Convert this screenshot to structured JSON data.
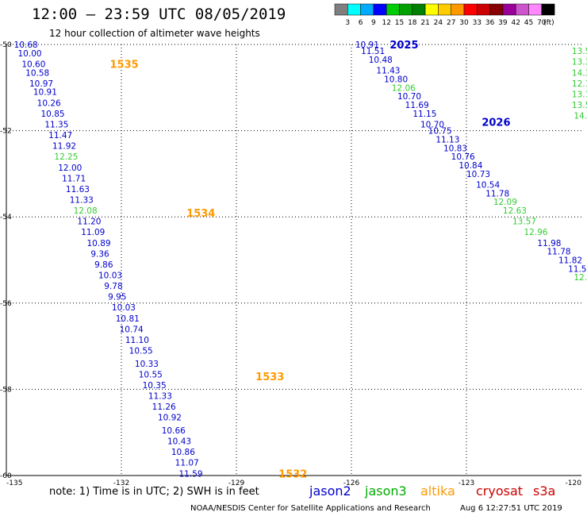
{
  "header": {
    "title": "12:00 – 23:59 UTC 08/05/2019",
    "subtitle": "12 hour collection of altimeter wave heights"
  },
  "color_scale": {
    "ticks": [
      "3",
      "6",
      "9",
      "12",
      "15",
      "18",
      "21",
      "24",
      "27",
      "30",
      "33",
      "36",
      "39",
      "42",
      "45",
      "70"
    ],
    "unit": "(ft)",
    "colors": [
      "#7f7f7f",
      "#00ffff",
      "#00aaff",
      "#0000ff",
      "#00cc00",
      "#00a000",
      "#008000",
      "#ffff00",
      "#ffcc00",
      "#ff9900",
      "#ff0000",
      "#cc0000",
      "#880000",
      "#990099",
      "#cc55cc",
      "#ff88ff",
      "#000000"
    ]
  },
  "map": {
    "lon_labels": [
      "-135",
      "-132",
      "-129",
      "-126",
      "-123",
      "-120"
    ],
    "lat_labels": [
      "-50",
      "-52",
      "-54",
      "-56",
      "-58",
      "-60"
    ]
  },
  "chart_data": {
    "type": "scatter",
    "xlim": [
      -135,
      -120
    ],
    "ylim": [
      -60,
      -50
    ],
    "x_ticks": [
      -135,
      -132,
      -129,
      -126,
      -123,
      -120
    ],
    "y_ticks": [
      -50,
      -52,
      -54,
      -56,
      -58,
      -60
    ],
    "pass_labels": [
      {
        "text": "1535",
        "lon": -132.3,
        "lat": -50.45,
        "color": "#ff9900"
      },
      {
        "text": "1534",
        "lon": -130.3,
        "lat": -53.9,
        "color": "#ff9900"
      },
      {
        "text": "1533",
        "lon": -128.5,
        "lat": -57.7,
        "color": "#ff9900"
      },
      {
        "text": "1532",
        "lon": -127.9,
        "lat": -59.95,
        "color": "#ff9900"
      },
      {
        "text": "2025",
        "lon": -125.0,
        "lat": -50.0,
        "color": "#0000cc"
      },
      {
        "text": "2026",
        "lon": -122.6,
        "lat": -51.8,
        "color": "#0000cc"
      }
    ],
    "series": [
      {
        "name": "jason2",
        "color": "#0000cc",
        "points": [
          {
            "lon": -134.8,
            "lat": -50.0,
            "label": "10.68"
          },
          {
            "lon": -134.7,
            "lat": -50.2,
            "label": "10.00"
          },
          {
            "lon": -134.6,
            "lat": -50.45,
            "label": "10.60"
          },
          {
            "lon": -134.5,
            "lat": -50.65,
            "label": "10.58"
          },
          {
            "lon": -134.4,
            "lat": -50.9,
            "label": "10.97"
          },
          {
            "lon": -134.3,
            "lat": -51.1,
            "label": "10.91"
          },
          {
            "lon": -134.2,
            "lat": -51.35,
            "label": "10.26"
          },
          {
            "lon": -134.1,
            "lat": -51.6,
            "label": "10.85"
          },
          {
            "lon": -134.0,
            "lat": -51.85,
            "label": "11.35"
          },
          {
            "lon": -133.9,
            "lat": -52.1,
            "label": "11.47"
          },
          {
            "lon": -133.8,
            "lat": -52.35,
            "label": "11.92"
          },
          {
            "lon": -133.65,
            "lat": -52.85,
            "label": "12.00"
          },
          {
            "lon": -133.55,
            "lat": -53.1,
            "label": "11.71"
          },
          {
            "lon": -133.45,
            "lat": -53.35,
            "label": "11.63"
          },
          {
            "lon": -133.35,
            "lat": -53.6,
            "label": "11.33"
          },
          {
            "lon": -133.15,
            "lat": -54.1,
            "label": "11.20"
          },
          {
            "lon": -133.05,
            "lat": -54.35,
            "label": "11.09"
          },
          {
            "lon": -132.9,
            "lat": -54.6,
            "label": "10.89"
          },
          {
            "lon": -132.8,
            "lat": -54.85,
            "label": "9.36"
          },
          {
            "lon": -132.7,
            "lat": -55.1,
            "label": "9.86"
          },
          {
            "lon": -132.6,
            "lat": -55.35,
            "label": "10.03"
          },
          {
            "lon": -132.45,
            "lat": -55.6,
            "label": "9.78"
          },
          {
            "lon": -132.35,
            "lat": -55.85,
            "label": "9.95"
          },
          {
            "lon": -132.25,
            "lat": -56.1,
            "label": "10.03"
          },
          {
            "lon": -132.15,
            "lat": -56.35,
            "label": "10.81"
          },
          {
            "lon": -132.05,
            "lat": -56.6,
            "label": "10.74"
          },
          {
            "lon": -131.9,
            "lat": -56.85,
            "label": "11.10"
          },
          {
            "lon": -131.8,
            "lat": -57.1,
            "label": "10.55"
          },
          {
            "lon": -131.65,
            "lat": -57.4,
            "label": "10.33"
          },
          {
            "lon": -131.55,
            "lat": -57.65,
            "label": "10.55"
          },
          {
            "lon": -131.45,
            "lat": -57.9,
            "label": "10.35"
          },
          {
            "lon": -131.3,
            "lat": -58.15,
            "label": "11.33"
          },
          {
            "lon": -131.2,
            "lat": -58.4,
            "label": "11.26"
          },
          {
            "lon": -131.05,
            "lat": -58.65,
            "label": "10.92"
          },
          {
            "lon": -130.95,
            "lat": -58.95,
            "label": "10.66"
          },
          {
            "lon": -130.8,
            "lat": -59.2,
            "label": "10.43"
          },
          {
            "lon": -130.7,
            "lat": -59.45,
            "label": "10.86"
          },
          {
            "lon": -130.6,
            "lat": -59.7,
            "label": "11.07"
          },
          {
            "lon": -130.5,
            "lat": -59.95,
            "label": "11.59"
          },
          {
            "lon": -130.35,
            "lat": -60.2,
            "label": "11.27"
          },
          {
            "lon": -125.9,
            "lat": -50.0,
            "label": "10.91"
          },
          {
            "lon": -125.75,
            "lat": -50.15,
            "label": "11.51"
          },
          {
            "lon": -125.55,
            "lat": -50.35,
            "label": "10.48"
          },
          {
            "lon": -125.35,
            "lat": -50.6,
            "label": "11.43"
          },
          {
            "lon": -125.15,
            "lat": -50.8,
            "label": "10.80"
          },
          {
            "lon": -124.8,
            "lat": -51.2,
            "label": "10.70"
          },
          {
            "lon": -124.6,
            "lat": -51.4,
            "label": "11.69"
          },
          {
            "lon": -124.4,
            "lat": -51.6,
            "label": "11.15"
          },
          {
            "lon": -124.2,
            "lat": -51.85,
            "label": "10.70"
          },
          {
            "lon": -124.0,
            "lat": -52.0,
            "label": "10.75"
          },
          {
            "lon": -123.8,
            "lat": -52.2,
            "label": "11.13"
          },
          {
            "lon": -123.6,
            "lat": -52.4,
            "label": "10.83"
          },
          {
            "lon": -123.4,
            "lat": -52.6,
            "label": "10.76"
          },
          {
            "lon": -123.2,
            "lat": -52.8,
            "label": "10.84"
          },
          {
            "lon": -123.0,
            "lat": -53.0,
            "label": "10.73"
          },
          {
            "lon": -122.75,
            "lat": -53.25,
            "label": "10.54"
          },
          {
            "lon": -122.5,
            "lat": -53.45,
            "label": "11.78"
          },
          {
            "lon": -121.15,
            "lat": -54.6,
            "label": "11.98"
          },
          {
            "lon": -120.9,
            "lat": -54.8,
            "label": "11.78"
          },
          {
            "lon": -120.6,
            "lat": -55.0,
            "label": "11.82"
          },
          {
            "lon": -120.35,
            "lat": -55.2,
            "label": "11.51"
          }
        ]
      },
      {
        "name": "jason3",
        "color": "#33cc33",
        "points": [
          {
            "lon": -133.75,
            "lat": -52.6,
            "label": "12.25"
          },
          {
            "lon": -133.25,
            "lat": -53.85,
            "label": "12.08"
          },
          {
            "lon": -124.95,
            "lat": -51.0,
            "label": "12.06"
          },
          {
            "lon": -122.3,
            "lat": -53.65,
            "label": "12.09"
          },
          {
            "lon": -122.05,
            "lat": -53.85,
            "label": "12.63"
          },
          {
            "lon": -121.8,
            "lat": -54.1,
            "label": "13.57"
          },
          {
            "lon": -121.5,
            "lat": -54.35,
            "label": "12.96"
          },
          {
            "lon": -120.2,
            "lat": -55.4,
            "label": "12.6"
          },
          {
            "lon": -120.25,
            "lat": -50.15,
            "label": "13.5"
          },
          {
            "lon": -120.25,
            "lat": -50.4,
            "label": "13.3"
          },
          {
            "lon": -120.25,
            "lat": -50.65,
            "label": "14.3"
          },
          {
            "lon": -120.25,
            "lat": -50.9,
            "label": "12.1"
          },
          {
            "lon": -120.25,
            "lat": -51.15,
            "label": "13.1"
          },
          {
            "lon": -120.25,
            "lat": -51.4,
            "label": "13.5"
          },
          {
            "lon": -120.2,
            "lat": -51.65,
            "label": "14.1"
          }
        ]
      }
    ]
  },
  "legend": {
    "note": "note: 1) Time is in UTC; 2) SWH is in feet",
    "satellites": [
      {
        "name": "jason2",
        "color": "#0000cc"
      },
      {
        "name": "jason3",
        "color": "#00aa00"
      },
      {
        "name": "altika",
        "color": "#ff9900"
      },
      {
        "name": "cryosat",
        "color": "#cc0000"
      },
      {
        "name": "s3a",
        "color": "#cc0000"
      }
    ]
  },
  "footer": {
    "credit": "NOAA/NESDIS Center for Satellite Applications and Research",
    "timestamp": "Aug  6 12:27:51 UTC 2019"
  }
}
